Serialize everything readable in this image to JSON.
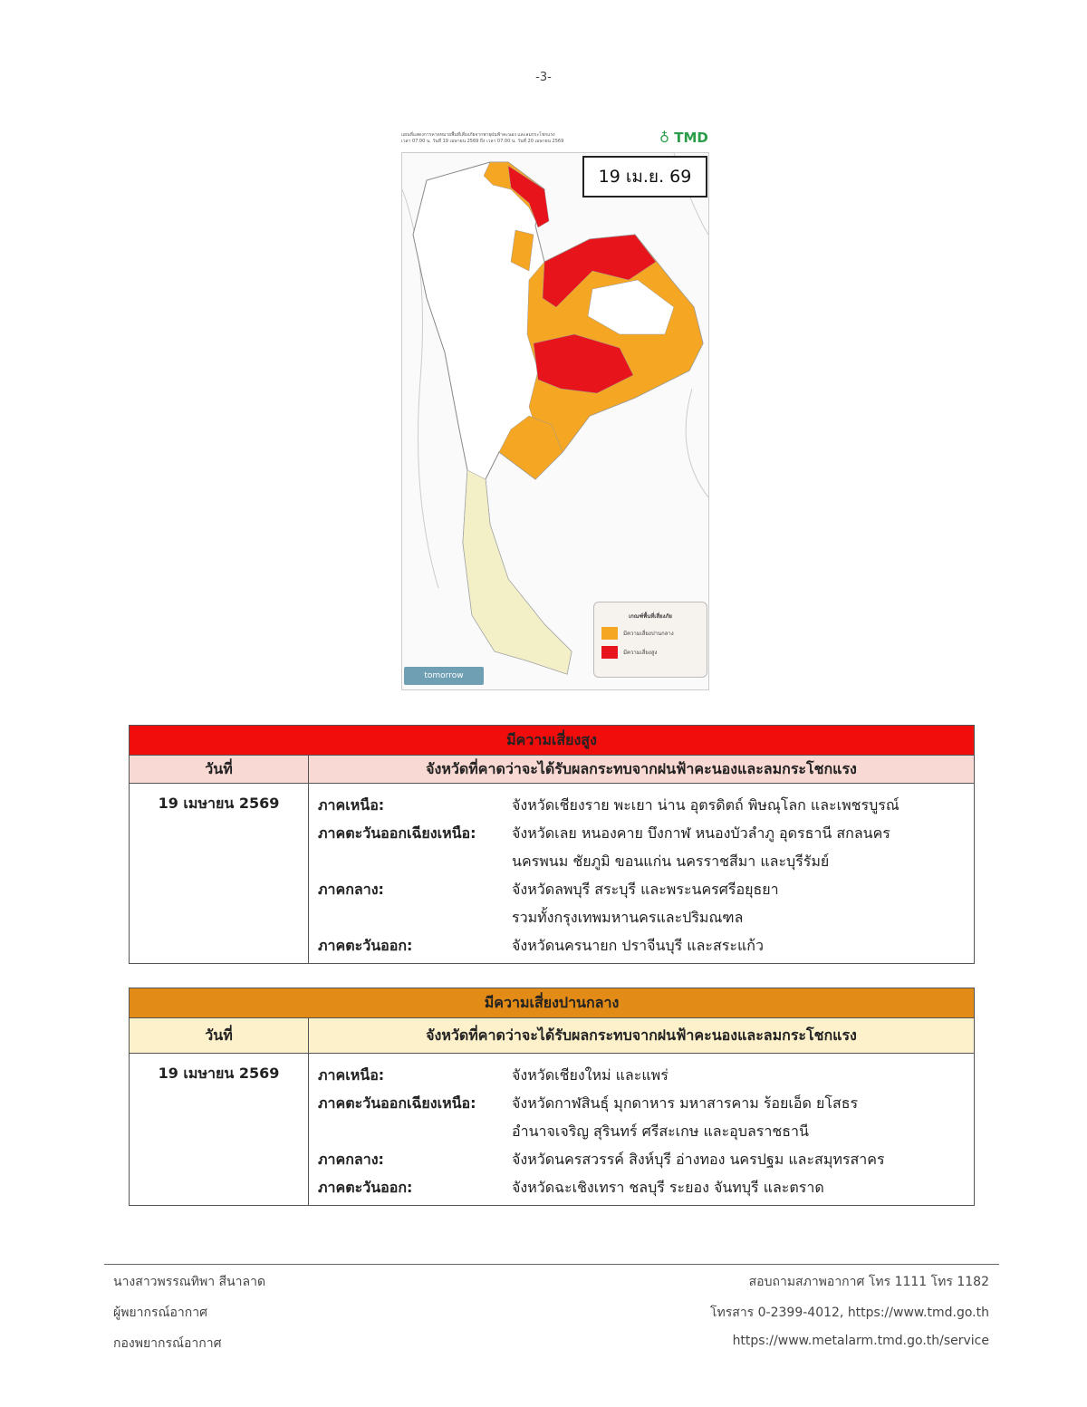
{
  "page_number": "-3-",
  "map": {
    "header_line1": "แผนที่แสดงการคาดหมายพื้นที่เสี่ยงภัยจากพายุฝนฟ้าคะนอง และลมกระโชกแรง",
    "header_line2": "เวลา 07.00 น. วันที่ 19 เมษายน 2569 ถึง เวลา 07.00 น. วันที่ 20 เมษายน 2569",
    "logo_text": "TMD",
    "date_label": "19 เม.ย. 69",
    "legend": {
      "title": "เกณฑ์พื้นที่เสี่ยงภัย",
      "items": [
        {
          "label": "มีความเสี่ยงปานกลาง",
          "color": "#f5a623"
        },
        {
          "label": "มีความเสี่ยงสูง",
          "color": "#e8141c"
        }
      ]
    },
    "watermark": "tomorrow",
    "colors": {
      "moderate": "#f5a623",
      "high": "#e8141c",
      "south": "#f3f0c8",
      "land": "#ffffff"
    }
  },
  "high_risk": {
    "title": "มีความเสี่ยงสูง",
    "col_date": "วันที่",
    "col_provinces": "จังหวัดที่คาดว่าจะได้รับผลกระทบจากฝนฟ้าคะนองและลมกระโชกแรง",
    "date": "19 เมษายน 2569",
    "regions": [
      {
        "label": "ภาคเหนือ:",
        "lines": [
          "จังหวัดเชียงราย พะเยา น่าน อุตรดิตถ์ พิษณุโลก และเพชรบูรณ์"
        ]
      },
      {
        "label": "ภาคตะวันออกเฉียงเหนือ:",
        "lines": [
          "จังหวัดเลย หนองคาย บึงกาฬ หนองบัวลำภู อุดรธานี สกลนคร",
          "นครพนม ชัยภูมิ ขอนแก่น นครราชสีมา และบุรีรัมย์"
        ]
      },
      {
        "label": "ภาคกลาง:",
        "lines": [
          "จังหวัดลพบุรี สระบุรี และพระนครศรีอยุธยา",
          "รวมทั้งกรุงเทพมหานครและปริมณฑล"
        ]
      },
      {
        "label": "ภาคตะวันออก:",
        "lines": [
          "จังหวัดนครนายก ปราจีนบุรี และสระแก้ว"
        ]
      }
    ],
    "colors": {
      "header": "#f20d0d",
      "subheader": "#f9d9d3"
    }
  },
  "moderate_risk": {
    "title": "มีความเสี่ยงปานกลาง",
    "col_date": "วันที่",
    "col_provinces": "จังหวัดที่คาดว่าจะได้รับผลกระทบจากฝนฟ้าคะนองและลมกระโชกแรง",
    "date": "19 เมษายน 2569",
    "regions": [
      {
        "label": "ภาคเหนือ:",
        "lines": [
          "จังหวัดเชียงใหม่ และแพร่"
        ]
      },
      {
        "label": "ภาคตะวันออกเฉียงเหนือ:",
        "lines": [
          "จังหวัดกาฬสินธุ์ มุกดาหาร มหาสารคาม ร้อยเอ็ด ยโสธร",
          "อำนาจเจริญ สุรินทร์ ศรีสะเกษ และอุบลราชธานี"
        ]
      },
      {
        "label": "ภาคกลาง:",
        "lines": [
          "จังหวัดนครสวรรค์ สิงห์บุรี อ่างทอง นครปฐม และสมุทรสาคร"
        ]
      },
      {
        "label": "ภาคตะวันออก:",
        "lines": [
          "จังหวัดฉะเชิงเทรา ชลบุรี ระยอง จันทบุรี และตราด"
        ]
      }
    ],
    "colors": {
      "header": "#e38b17",
      "subheader": "#fdf1cc"
    }
  },
  "footer": {
    "left": [
      "นางสาวพรรณทิพา สีนาลาด",
      "ผู้พยากรณ์อากาศ",
      "กองพยากรณ์อากาศ"
    ],
    "right": [
      "สอบถามสภาพอากาศ โทร 1111 โทร 1182",
      "โทรสาร 0-2399-4012, https://www.tmd.go.th",
      "https://www.metalarm.tmd.go.th/service"
    ]
  }
}
